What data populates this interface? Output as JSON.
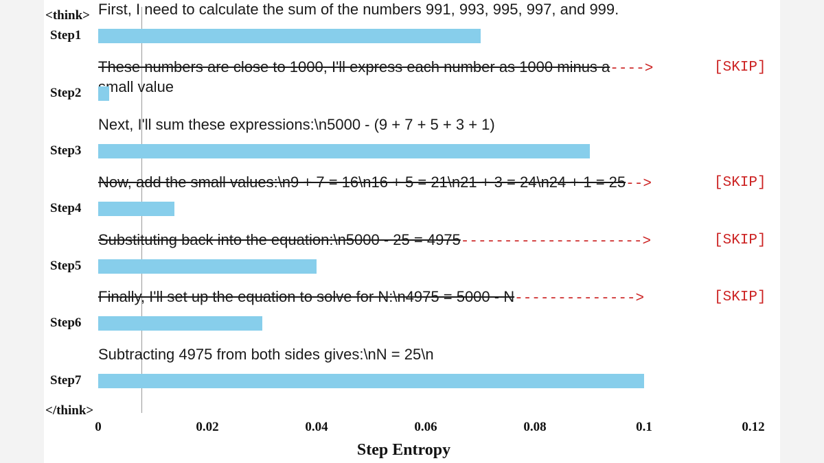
{
  "chart_data": {
    "type": "bar",
    "orientation": "horizontal",
    "xlabel": "Step Entropy",
    "xlim": [
      0,
      0.12
    ],
    "xticks": [
      "0",
      "0.02",
      "0.04",
      "0.06",
      "0.08",
      "0.1",
      "0.12"
    ],
    "open_tag": "<think>",
    "close_tag": "</think>",
    "skip_label": "[SKIP]",
    "steps": [
      {
        "label": "Step1",
        "text": "First, I need to calculate the sum of the numbers 991, 993, 995, 997, and 999.",
        "value": 0.07,
        "skipped": false,
        "arrow": ""
      },
      {
        "label": "Step2",
        "text": "These numbers are close to 1000, I'll express each number as 1000 minus a",
        "text2": "small value",
        "value": 0.002,
        "skipped": true,
        "arrow": "---->"
      },
      {
        "label": "Step3",
        "text": "Next, I'll sum these expressions:\\n5000 - (9 + 7 + 5 + 3 + 1)",
        "value": 0.09,
        "skipped": false,
        "arrow": ""
      },
      {
        "label": "Step4",
        "text": "Now, add the small values:\\n9 + 7 = 16\\n16 + 5 = 21\\n21 + 3 = 24\\n24 + 1 = 25",
        "value": 0.014,
        "skipped": true,
        "arrow": "-->"
      },
      {
        "label": "Step5",
        "text": "Substituting back into the equation:\\n5000 - 25 = 4975",
        "value": 0.04,
        "skipped": true,
        "arrow": "--------------------->"
      },
      {
        "label": "Step6",
        "text": "Finally, I'll set up the equation to solve for N:\\n4975 = 5000 - N",
        "value": 0.03,
        "skipped": true,
        "arrow": "-------------->"
      },
      {
        "label": "Step7",
        "text": "Subtracting 4975 from both sides gives:\\nN = 25\\n",
        "value": 0.1,
        "skipped": false,
        "arrow": ""
      }
    ]
  }
}
